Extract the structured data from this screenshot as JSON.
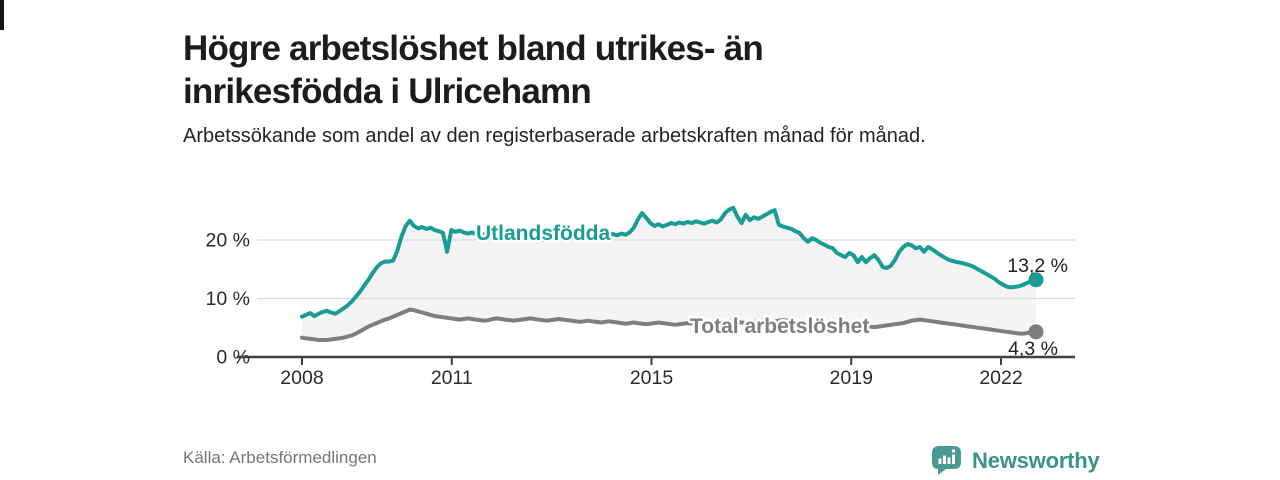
{
  "title": "Högre arbetslöshet bland utrikes- än inrikesfödda i Ulricehamn",
  "subtitle": "Arbetssökande som andel av den registerbaserade arbetskraften månad för månad.",
  "source": "Källa: Arbetsförmedlingen",
  "brand": {
    "name": "Newsworthy",
    "color": "#3b928b",
    "icon": "bar-chart-speech-bubble-icon"
  },
  "colors": {
    "foreign_line": "#189c93",
    "total_line": "#7e7e7e",
    "grid": "#dcdcdc",
    "axis": "#3f3f3f",
    "band_fill": "#f4f4f4",
    "tick_text": "#2b2b2b",
    "value_text": "#222222"
  },
  "chart_data": {
    "type": "line",
    "title": "Högre arbetslöshet bland utrikes- än inrikesfödda i Ulricehamn",
    "subtitle": "Arbetssökande som andel av den registerbaserade arbetskraften månad för månad.",
    "x_unit": "month",
    "x_start_year": 2008,
    "x_end": "2022-10",
    "x_ticks": [
      2008,
      2011,
      2015,
      2019,
      2022
    ],
    "y_ticks": [
      {
        "v": 0,
        "label": "0 %"
      },
      {
        "v": 10,
        "label": "10 %"
      },
      {
        "v": 20,
        "label": "20 %"
      }
    ],
    "ylim": [
      0,
      28
    ],
    "grid": "horizontal",
    "legend": "inline-labels",
    "fill_between_series": true,
    "series": [
      {
        "name": "Utlandsfödda",
        "color": "#189c93",
        "end_label": "13,2 %",
        "end_value": 13.2,
        "values": [
          6.9,
          7.2,
          7.5,
          7.0,
          7.4,
          7.7,
          7.9,
          7.6,
          7.4,
          7.8,
          8.3,
          8.8,
          9.5,
          10.3,
          11.2,
          12.2,
          13.2,
          14.3,
          15.3,
          16.0,
          16.3,
          16.3,
          16.5,
          18.2,
          20.6,
          22.4,
          23.3,
          22.4,
          22.0,
          22.2,
          21.9,
          22.1,
          21.7,
          21.5,
          21.2,
          18.0,
          21.7,
          21.4,
          21.6,
          21.3,
          21.1,
          21.3,
          21.0,
          20.8,
          21.0,
          20.7,
          20.9,
          20.6,
          20.4,
          20.6,
          20.9,
          20.6,
          20.4,
          20.2,
          20.5,
          20.7,
          20.4,
          20.2,
          20.0,
          20.3,
          20.5,
          20.8,
          20.6,
          20.9,
          21.1,
          20.8,
          20.6,
          20.9,
          21.2,
          21.0,
          21.2,
          21.0,
          20.8,
          21.0,
          21.2,
          21.0,
          20.8,
          21.1,
          20.9,
          21.3,
          22.1,
          23.5,
          24.6,
          23.8,
          22.9,
          22.4,
          22.7,
          22.3,
          22.6,
          22.9,
          22.7,
          23.0,
          22.8,
          23.1,
          22.9,
          23.2,
          23.0,
          22.8,
          23.1,
          23.3,
          23.0,
          23.5,
          24.6,
          25.2,
          25.5,
          24.0,
          22.9,
          24.3,
          23.4,
          23.9,
          23.6,
          24.0,
          24.4,
          24.8,
          25.1,
          22.6,
          22.3,
          22.1,
          21.9,
          21.5,
          21.2,
          20.3,
          19.7,
          20.3,
          20.0,
          19.5,
          19.2,
          18.8,
          18.6,
          17.8,
          17.4,
          17.1,
          17.8,
          17.4,
          16.2,
          17.1,
          16.2,
          16.9,
          17.4,
          16.6,
          15.4,
          15.2,
          15.6,
          16.6,
          18.0,
          18.8,
          19.3,
          19.1,
          18.6,
          18.8,
          18.0,
          18.8,
          18.4,
          17.9,
          17.4,
          17.0,
          16.6,
          16.4,
          16.2,
          16.1,
          15.9,
          15.7,
          15.4,
          15.0,
          14.6,
          14.2,
          13.8,
          13.4,
          12.8,
          12.4,
          12.0,
          11.9,
          12.0,
          12.1,
          12.4,
          12.7,
          13.0,
          13.2
        ]
      },
      {
        "name": "Total arbetslöshet",
        "color": "#7e7e7e",
        "end_label": "4,3 %",
        "end_value": 4.3,
        "values": [
          3.3,
          3.2,
          3.1,
          3.0,
          2.9,
          2.9,
          2.9,
          3.0,
          3.1,
          3.2,
          3.3,
          3.5,
          3.7,
          4.0,
          4.4,
          4.8,
          5.2,
          5.5,
          5.8,
          6.1,
          6.4,
          6.6,
          6.9,
          7.2,
          7.5,
          7.8,
          8.1,
          8.0,
          7.8,
          7.6,
          7.4,
          7.2,
          7.0,
          6.9,
          6.8,
          6.7,
          6.6,
          6.5,
          6.4,
          6.5,
          6.6,
          6.5,
          6.4,
          6.3,
          6.2,
          6.3,
          6.5,
          6.6,
          6.5,
          6.4,
          6.3,
          6.2,
          6.3,
          6.4,
          6.5,
          6.6,
          6.5,
          6.4,
          6.3,
          6.2,
          6.3,
          6.4,
          6.5,
          6.4,
          6.3,
          6.2,
          6.1,
          6.0,
          6.1,
          6.2,
          6.1,
          6.0,
          5.9,
          6.0,
          6.1,
          6.0,
          5.9,
          5.8,
          5.7,
          5.8,
          5.9,
          5.8,
          5.7,
          5.6,
          5.7,
          5.8,
          5.9,
          5.8,
          5.7,
          5.6,
          5.5,
          5.6,
          5.7,
          5.8,
          5.7,
          5.6,
          5.7,
          5.8,
          5.9,
          6.0,
          5.9,
          5.8,
          5.9,
          6.0,
          6.1,
          6.0,
          5.9,
          5.8,
          5.9,
          6.0,
          6.1,
          6.2,
          6.1,
          6.0,
          6.1,
          6.2,
          6.3,
          6.2,
          6.1,
          6.0,
          5.9,
          5.8,
          5.7,
          5.6,
          5.5,
          5.4,
          5.3,
          5.2,
          5.3,
          5.4,
          5.3,
          5.2,
          5.3,
          5.4,
          5.5,
          5.4,
          5.3,
          5.2,
          5.1,
          5.2,
          5.3,
          5.4,
          5.5,
          5.6,
          5.7,
          5.8,
          6.0,
          6.2,
          6.3,
          6.4,
          6.3,
          6.2,
          6.1,
          6.0,
          5.9,
          5.8,
          5.7,
          5.6,
          5.5,
          5.4,
          5.3,
          5.2,
          5.1,
          5.0,
          4.9,
          4.8,
          4.7,
          4.6,
          4.5,
          4.4,
          4.3,
          4.2,
          4.1,
          4.0,
          4.0,
          4.1,
          4.2,
          4.3
        ]
      }
    ]
  }
}
